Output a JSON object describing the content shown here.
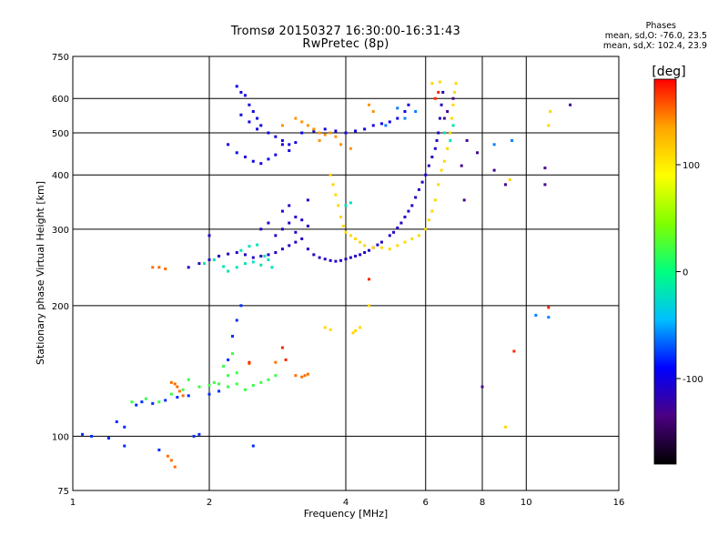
{
  "title_line1": "Tromsø 20150327 16:30:00-16:31:43",
  "title_line2": "RwPretec (8p)",
  "phases": {
    "header": "Phases",
    "line_o": "mean, sd,O: -76.0, 23.5",
    "line_x": "mean, sd,X: 102.4, 23.9"
  },
  "chart_data": {
    "type": "scatter",
    "xlabel": "Frequency [MHz]",
    "ylabel": "Stationary phase Virtual Height [km]",
    "x_scale": "log",
    "y_scale": "log",
    "xlim": [
      1,
      16
    ],
    "ylim": [
      75,
      750
    ],
    "x_ticks": [
      1,
      2,
      4,
      6,
      8,
      10,
      16
    ],
    "x_tick_labels": [
      "1",
      "2",
      "4",
      "6",
      "8",
      "10",
      "16"
    ],
    "y_ticks": [
      75,
      100,
      200,
      300,
      400,
      500,
      600,
      750
    ],
    "y_tick_labels": [
      "75",
      "100",
      "200",
      "300",
      "400",
      "500",
      "600",
      "750"
    ],
    "grid": true,
    "colorbar": {
      "label": "[deg]",
      "range": [
        -180,
        180
      ],
      "ticks": [
        100,
        0,
        -100
      ],
      "tick_labels": [
        "100",
        "0",
        "-100"
      ],
      "colors": [
        "#000000",
        "#4b0082",
        "#0000ff",
        "#00bfff",
        "#00ff7f",
        "#7fff00",
        "#ffff00",
        "#ffa500",
        "#ff0000"
      ]
    },
    "series": [
      {
        "phase_deg": -80,
        "points": [
          [
            1.05,
            101
          ],
          [
            1.1,
            100
          ],
          [
            1.2,
            99
          ],
          [
            1.3,
            105
          ],
          [
            1.38,
            118
          ],
          [
            1.42,
            120
          ],
          [
            1.5,
            119
          ],
          [
            1.6,
            121
          ],
          [
            1.7,
            123
          ],
          [
            1.8,
            124
          ],
          [
            1.85,
            100
          ],
          [
            1.9,
            101
          ],
          [
            2.0,
            125
          ],
          [
            2.1,
            127
          ],
          [
            2.2,
            150
          ],
          [
            2.25,
            170
          ],
          [
            2.3,
            185
          ],
          [
            2.35,
            200
          ],
          [
            2.5,
            95
          ],
          [
            1.55,
            93
          ],
          [
            1.3,
            95
          ],
          [
            1.25,
            108
          ]
        ]
      },
      {
        "phase_deg": 20,
        "points": [
          [
            1.35,
            120
          ],
          [
            1.45,
            122
          ],
          [
            1.55,
            120
          ],
          [
            1.65,
            125
          ],
          [
            1.75,
            128
          ],
          [
            1.9,
            130
          ],
          [
            2.0,
            131
          ],
          [
            2.1,
            132
          ],
          [
            2.2,
            130
          ],
          [
            2.3,
            132
          ],
          [
            2.4,
            128
          ],
          [
            2.5,
            131
          ],
          [
            2.6,
            133
          ],
          [
            2.7,
            135
          ],
          [
            2.8,
            138
          ],
          [
            2.3,
            140
          ],
          [
            2.2,
            138
          ],
          [
            1.8,
            135
          ],
          [
            2.05,
            133
          ],
          [
            2.15,
            145
          ],
          [
            2.25,
            155
          ]
        ]
      },
      {
        "phase_deg": 150,
        "points": [
          [
            1.55,
            245
          ],
          [
            1.5,
            245
          ],
          [
            1.6,
            243
          ],
          [
            1.65,
            133
          ],
          [
            1.68,
            132
          ],
          [
            1.7,
            130
          ],
          [
            1.72,
            127
          ],
          [
            1.75,
            124
          ],
          [
            1.62,
            90
          ],
          [
            1.65,
            88
          ],
          [
            1.68,
            85
          ],
          [
            3.1,
            138
          ],
          [
            3.2,
            137
          ],
          [
            3.25,
            138
          ],
          [
            3.3,
            139
          ],
          [
            2.8,
            148
          ],
          [
            2.45,
            147
          ]
        ]
      },
      {
        "phase_deg": -100,
        "points": [
          [
            2.3,
            640
          ],
          [
            2.35,
            620
          ],
          [
            2.4,
            610
          ],
          [
            2.45,
            580
          ],
          [
            2.5,
            560
          ],
          [
            2.55,
            540
          ],
          [
            2.6,
            520
          ],
          [
            2.7,
            500
          ],
          [
            2.8,
            490
          ],
          [
            2.9,
            480
          ],
          [
            3.0,
            470
          ],
          [
            3.1,
            475
          ],
          [
            3.2,
            500
          ],
          [
            3.4,
            505
          ],
          [
            3.6,
            510
          ],
          [
            3.8,
            505
          ],
          [
            4.0,
            500
          ],
          [
            4.2,
            505
          ],
          [
            4.4,
            510
          ],
          [
            4.6,
            520
          ],
          [
            4.8,
            525
          ],
          [
            5.0,
            530
          ],
          [
            5.2,
            540
          ],
          [
            2.2,
            470
          ],
          [
            2.3,
            450
          ],
          [
            2.4,
            440
          ],
          [
            2.5,
            430
          ],
          [
            2.6,
            425
          ],
          [
            2.7,
            435
          ],
          [
            2.8,
            445
          ],
          [
            2.9,
            470
          ],
          [
            3.0,
            455
          ],
          [
            2.35,
            550
          ],
          [
            2.45,
            530
          ],
          [
            2.55,
            510
          ],
          [
            5.4,
            560
          ],
          [
            5.5,
            580
          ]
        ]
      },
      {
        "phase_deg": 140,
        "points": [
          [
            3.1,
            540
          ],
          [
            3.2,
            530
          ],
          [
            3.3,
            520
          ],
          [
            3.4,
            510
          ],
          [
            3.5,
            500
          ],
          [
            3.6,
            495
          ],
          [
            3.7,
            500
          ],
          [
            3.8,
            490
          ],
          [
            3.5,
            480
          ],
          [
            3.9,
            470
          ],
          [
            4.1,
            460
          ],
          [
            2.9,
            520
          ],
          [
            4.5,
            580
          ],
          [
            4.6,
            560
          ]
        ]
      },
      {
        "phase_deg": -110,
        "points": [
          [
            1.8,
            245
          ],
          [
            1.9,
            250
          ],
          [
            2.0,
            255
          ],
          [
            2.1,
            260
          ],
          [
            2.2,
            263
          ],
          [
            2.3,
            265
          ],
          [
            2.4,
            262
          ],
          [
            2.5,
            258
          ],
          [
            2.6,
            260
          ],
          [
            2.7,
            262
          ],
          [
            2.8,
            265
          ],
          [
            2.9,
            270
          ],
          [
            3.0,
            275
          ],
          [
            3.1,
            280
          ],
          [
            2.8,
            290
          ],
          [
            2.9,
            300
          ],
          [
            3.0,
            310
          ],
          [
            3.1,
            320
          ],
          [
            3.2,
            315
          ],
          [
            3.3,
            305
          ],
          [
            3.1,
            295
          ],
          [
            3.2,
            285
          ],
          [
            3.3,
            270
          ],
          [
            3.4,
            262
          ],
          [
            3.5,
            258
          ],
          [
            3.6,
            256
          ],
          [
            3.7,
            254
          ],
          [
            3.8,
            253
          ],
          [
            3.9,
            254
          ],
          [
            4.0,
            256
          ],
          [
            4.1,
            258
          ],
          [
            4.2,
            260
          ],
          [
            4.3,
            262
          ],
          [
            4.4,
            265
          ],
          [
            4.5,
            268
          ],
          [
            4.6,
            272
          ],
          [
            4.7,
            276
          ],
          [
            4.8,
            280
          ],
          [
            5.0,
            290
          ],
          [
            5.1,
            295
          ],
          [
            5.2,
            302
          ],
          [
            5.3,
            310
          ],
          [
            5.4,
            320
          ],
          [
            5.5,
            330
          ],
          [
            5.6,
            340
          ],
          [
            5.7,
            355
          ],
          [
            5.8,
            370
          ],
          [
            5.9,
            385
          ],
          [
            6.0,
            400
          ],
          [
            6.1,
            420
          ],
          [
            6.2,
            440
          ],
          [
            6.3,
            460
          ],
          [
            6.35,
            480
          ],
          [
            6.4,
            500
          ],
          [
            6.45,
            540
          ],
          [
            6.5,
            580
          ],
          [
            6.55,
            620
          ],
          [
            2.9,
            330
          ],
          [
            3.3,
            350
          ],
          [
            3.0,
            340
          ],
          [
            2.7,
            310
          ],
          [
            2.6,
            300
          ],
          [
            2.0,
            290
          ]
        ]
      },
      {
        "phase_deg": -20,
        "points": [
          [
            2.2,
            240
          ],
          [
            2.3,
            245
          ],
          [
            2.4,
            250
          ],
          [
            2.5,
            252
          ],
          [
            2.6,
            248
          ],
          [
            2.7,
            255
          ],
          [
            2.35,
            268
          ],
          [
            2.45,
            274
          ],
          [
            2.55,
            276
          ],
          [
            2.65,
            260
          ],
          [
            2.75,
            245
          ],
          [
            4.0,
            340
          ],
          [
            4.1,
            345
          ],
          [
            6.6,
            500
          ],
          [
            6.8,
            480
          ],
          [
            6.9,
            520
          ],
          [
            1.95,
            250
          ],
          [
            2.05,
            255
          ],
          [
            2.15,
            246
          ]
        ]
      },
      {
        "phase_deg": 110,
        "points": [
          [
            3.7,
            400
          ],
          [
            3.75,
            380
          ],
          [
            3.8,
            360
          ],
          [
            3.85,
            340
          ],
          [
            3.9,
            320
          ],
          [
            3.95,
            305
          ],
          [
            4.0,
            295
          ],
          [
            4.1,
            290
          ],
          [
            4.2,
            285
          ],
          [
            4.3,
            280
          ],
          [
            4.4,
            275
          ],
          [
            4.6,
            272
          ],
          [
            4.8,
            272
          ],
          [
            5.0,
            270
          ],
          [
            5.2,
            275
          ],
          [
            5.4,
            280
          ],
          [
            5.6,
            285
          ],
          [
            5.8,
            290
          ],
          [
            6.0,
            300
          ],
          [
            6.1,
            315
          ],
          [
            6.2,
            330
          ],
          [
            6.3,
            350
          ],
          [
            6.4,
            380
          ],
          [
            6.5,
            410
          ],
          [
            6.6,
            430
          ],
          [
            6.7,
            460
          ],
          [
            6.8,
            500
          ],
          [
            6.85,
            540
          ],
          [
            6.9,
            580
          ],
          [
            6.95,
            620
          ],
          [
            7.0,
            650
          ],
          [
            4.2,
            175
          ],
          [
            4.3,
            178
          ],
          [
            4.15,
            173
          ],
          [
            3.6,
            178
          ],
          [
            3.7,
            176
          ],
          [
            4.5,
            200
          ],
          [
            9.0,
            105
          ],
          [
            11.2,
            520
          ],
          [
            11.3,
            560
          ],
          [
            9.2,
            390
          ],
          [
            6.2,
            650
          ],
          [
            6.45,
            655
          ]
        ]
      },
      {
        "phase_deg": -130,
        "points": [
          [
            7.4,
            480
          ],
          [
            7.8,
            450
          ],
          [
            7.2,
            420
          ],
          [
            8.5,
            410
          ],
          [
            9.0,
            380
          ],
          [
            8.0,
            130
          ],
          [
            11.0,
            380
          ],
          [
            12.5,
            580
          ],
          [
            11.0,
            415
          ],
          [
            7.3,
            350
          ],
          [
            6.9,
            600
          ],
          [
            6.7,
            560
          ],
          [
            6.6,
            540
          ]
        ]
      },
      {
        "phase_deg": -60,
        "points": [
          [
            10.5,
            190
          ],
          [
            11.2,
            188
          ],
          [
            9.3,
            480
          ],
          [
            8.5,
            470
          ],
          [
            5.7,
            560
          ],
          [
            5.4,
            540
          ],
          [
            5.2,
            570
          ],
          [
            4.9,
            520
          ]
        ]
      },
      {
        "phase_deg": 170,
        "points": [
          [
            11.2,
            198
          ],
          [
            9.4,
            157
          ],
          [
            2.9,
            160
          ],
          [
            2.95,
            150
          ],
          [
            2.45,
            148
          ],
          [
            4.5,
            230
          ],
          [
            6.3,
            600
          ],
          [
            6.4,
            620
          ]
        ]
      }
    ]
  }
}
